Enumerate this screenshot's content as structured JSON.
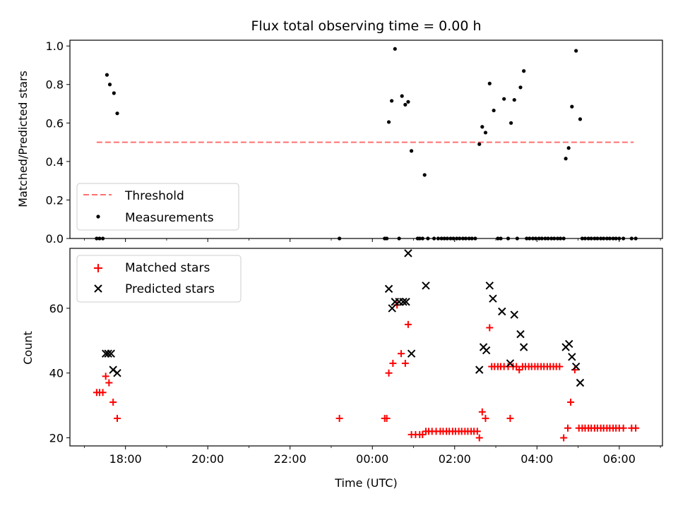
{
  "chart_data": [
    {
      "type": "scatter",
      "title": "Flux total observing time = 0.00 h",
      "xlabel": "",
      "ylabel": "Matched/Predicted stars",
      "xlim": [
        16.65,
        31.05
      ],
      "ylim": [
        0,
        1.03
      ],
      "yticks": [
        0.0,
        0.2,
        0.4,
        0.6,
        0.8,
        1.0
      ],
      "ytick_labels": [
        "0.0",
        "0.2",
        "0.4",
        "0.6",
        "0.8",
        "1.0"
      ],
      "legend": {
        "position": "bottom-left",
        "entries": [
          "Threshold",
          "Measurements"
        ]
      },
      "threshold": {
        "name": "Threshold",
        "value": 0.5,
        "x_range": [
          17.3,
          30.35
        ],
        "color": "#ff7070"
      },
      "series": [
        {
          "name": "Measurements",
          "color": "#000000",
          "points": [
            [
              17.3,
              0
            ],
            [
              17.37,
              0
            ],
            [
              17.45,
              0
            ],
            [
              17.55,
              0.85
            ],
            [
              17.62,
              0.8
            ],
            [
              17.72,
              0.755
            ],
            [
              17.8,
              0.65
            ],
            [
              23.2,
              0
            ],
            [
              24.3,
              0
            ],
            [
              24.35,
              0
            ],
            [
              24.4,
              0.605
            ],
            [
              24.47,
              0.715
            ],
            [
              24.55,
              0.985
            ],
            [
              24.65,
              0
            ],
            [
              24.72,
              0.74
            ],
            [
              24.8,
              0.695
            ],
            [
              24.87,
              0.71
            ],
            [
              24.95,
              0.455
            ],
            [
              25.1,
              0
            ],
            [
              25.15,
              0
            ],
            [
              25.22,
              0
            ],
            [
              25.27,
              0.33
            ],
            [
              25.35,
              0
            ],
            [
              25.5,
              0
            ],
            [
              25.6,
              0
            ],
            [
              25.68,
              0
            ],
            [
              25.75,
              0
            ],
            [
              25.82,
              0
            ],
            [
              25.9,
              0
            ],
            [
              25.97,
              0
            ],
            [
              26.05,
              0
            ],
            [
              26.12,
              0
            ],
            [
              26.2,
              0
            ],
            [
              26.27,
              0
            ],
            [
              26.35,
              0
            ],
            [
              26.42,
              0
            ],
            [
              26.5,
              0
            ],
            [
              26.6,
              0.49
            ],
            [
              26.67,
              0.58
            ],
            [
              26.75,
              0.55
            ],
            [
              26.85,
              0.805
            ],
            [
              26.95,
              0.665
            ],
            [
              27.05,
              0
            ],
            [
              27.12,
              0
            ],
            [
              27.2,
              0.725
            ],
            [
              27.3,
              0
            ],
            [
              27.37,
              0.6
            ],
            [
              27.45,
              0.72
            ],
            [
              27.52,
              0
            ],
            [
              27.6,
              0.785
            ],
            [
              27.68,
              0.87
            ],
            [
              27.75,
              0
            ],
            [
              27.82,
              0
            ],
            [
              27.9,
              0
            ],
            [
              27.97,
              0
            ],
            [
              28.05,
              0
            ],
            [
              28.12,
              0
            ],
            [
              28.2,
              0
            ],
            [
              28.27,
              0
            ],
            [
              28.35,
              0
            ],
            [
              28.42,
              0
            ],
            [
              28.5,
              0
            ],
            [
              28.57,
              0
            ],
            [
              28.65,
              0
            ],
            [
              28.7,
              0.415
            ],
            [
              28.77,
              0.47
            ],
            [
              28.85,
              0.685
            ],
            [
              28.95,
              0.975
            ],
            [
              29.05,
              0.62
            ],
            [
              29.1,
              0
            ],
            [
              29.17,
              0
            ],
            [
              29.25,
              0
            ],
            [
              29.32,
              0
            ],
            [
              29.4,
              0
            ],
            [
              29.47,
              0
            ],
            [
              29.55,
              0
            ],
            [
              29.62,
              0
            ],
            [
              29.7,
              0
            ],
            [
              29.77,
              0
            ],
            [
              29.85,
              0
            ],
            [
              29.92,
              0
            ],
            [
              30.0,
              0
            ],
            [
              30.1,
              0
            ],
            [
              30.3,
              0
            ],
            [
              30.4,
              0
            ]
          ]
        }
      ]
    },
    {
      "type": "scatter",
      "title": "",
      "xlabel": "Time (UTC)",
      "ylabel": "Count",
      "xlim": [
        16.65,
        31.05
      ],
      "ylim": [
        17.5,
        78.5
      ],
      "yticks": [
        20,
        40,
        60
      ],
      "ytick_labels": [
        "20",
        "40",
        "60"
      ],
      "xticks": [
        18,
        20,
        22,
        24,
        26,
        28,
        30
      ],
      "xtick_labels": [
        "18:00",
        "20:00",
        "22:00",
        "00:00",
        "02:00",
        "04:00",
        "06:00"
      ],
      "minor_xticks": [
        17,
        19,
        21,
        23,
        25,
        27,
        29,
        31
      ],
      "legend": {
        "position": "top-left",
        "entries": [
          "Matched stars",
          "Predicted stars"
        ]
      },
      "series": [
        {
          "name": "Matched stars",
          "marker": "plus",
          "color": "#ff0000",
          "points": [
            [
              17.3,
              34
            ],
            [
              17.37,
              34
            ],
            [
              17.45,
              34
            ],
            [
              17.52,
              39
            ],
            [
              17.6,
              37
            ],
            [
              17.7,
              31
            ],
            [
              17.8,
              26
            ],
            [
              23.2,
              26
            ],
            [
              24.3,
              26
            ],
            [
              24.35,
              26
            ],
            [
              24.4,
              40
            ],
            [
              24.5,
              43
            ],
            [
              24.6,
              61
            ],
            [
              24.7,
              46
            ],
            [
              24.8,
              43
            ],
            [
              24.87,
              55
            ],
            [
              24.95,
              21
            ],
            [
              25.05,
              21
            ],
            [
              25.15,
              21
            ],
            [
              25.22,
              21
            ],
            [
              25.3,
              22
            ],
            [
              25.37,
              22
            ],
            [
              25.45,
              22
            ],
            [
              25.55,
              22
            ],
            [
              25.65,
              22
            ],
            [
              25.72,
              22
            ],
            [
              25.8,
              22
            ],
            [
              25.87,
              22
            ],
            [
              25.95,
              22
            ],
            [
              26.02,
              22
            ],
            [
              26.1,
              22
            ],
            [
              26.17,
              22
            ],
            [
              26.25,
              22
            ],
            [
              26.32,
              22
            ],
            [
              26.4,
              22
            ],
            [
              26.47,
              22
            ],
            [
              26.55,
              22
            ],
            [
              26.6,
              20
            ],
            [
              26.67,
              28
            ],
            [
              26.75,
              26
            ],
            [
              26.85,
              54
            ],
            [
              26.9,
              42
            ],
            [
              26.97,
              42
            ],
            [
              27.05,
              42
            ],
            [
              27.12,
              42
            ],
            [
              27.2,
              42
            ],
            [
              27.3,
              42
            ],
            [
              27.35,
              26
            ],
            [
              27.42,
              42
            ],
            [
              27.5,
              42
            ],
            [
              27.57,
              41
            ],
            [
              27.65,
              42
            ],
            [
              27.72,
              42
            ],
            [
              27.8,
              42
            ],
            [
              27.87,
              42
            ],
            [
              27.95,
              42
            ],
            [
              28.02,
              42
            ],
            [
              28.1,
              42
            ],
            [
              28.17,
              42
            ],
            [
              28.25,
              42
            ],
            [
              28.32,
              42
            ],
            [
              28.4,
              42
            ],
            [
              28.47,
              42
            ],
            [
              28.55,
              42
            ],
            [
              28.65,
              20
            ],
            [
              28.75,
              23
            ],
            [
              28.82,
              31
            ],
            [
              28.92,
              41
            ],
            [
              29.02,
              23
            ],
            [
              29.1,
              23
            ],
            [
              29.17,
              23
            ],
            [
              29.25,
              23
            ],
            [
              29.32,
              23
            ],
            [
              29.4,
              23
            ],
            [
              29.47,
              23
            ],
            [
              29.55,
              23
            ],
            [
              29.62,
              23
            ],
            [
              29.7,
              23
            ],
            [
              29.77,
              23
            ],
            [
              29.85,
              23
            ],
            [
              29.92,
              23
            ],
            [
              30.0,
              23
            ],
            [
              30.1,
              23
            ],
            [
              30.3,
              23
            ],
            [
              30.4,
              23
            ]
          ]
        },
        {
          "name": "Predicted stars",
          "marker": "x",
          "color": "#000000",
          "points": [
            [
              17.52,
              46
            ],
            [
              17.58,
              46
            ],
            [
              17.65,
              46
            ],
            [
              17.7,
              41
            ],
            [
              17.8,
              40
            ],
            [
              24.4,
              66
            ],
            [
              24.48,
              60
            ],
            [
              24.55,
              62
            ],
            [
              24.65,
              62
            ],
            [
              24.75,
              62
            ],
            [
              24.82,
              62
            ],
            [
              24.87,
              77
            ],
            [
              24.95,
              46
            ],
            [
              25.3,
              67
            ],
            [
              26.6,
              41
            ],
            [
              26.7,
              48
            ],
            [
              26.77,
              47
            ],
            [
              26.85,
              67
            ],
            [
              26.93,
              63
            ],
            [
              27.15,
              59
            ],
            [
              27.35,
              43
            ],
            [
              27.45,
              58
            ],
            [
              27.6,
              52
            ],
            [
              27.68,
              48
            ],
            [
              28.7,
              48
            ],
            [
              28.78,
              49
            ],
            [
              28.85,
              45
            ],
            [
              28.95,
              42
            ],
            [
              29.05,
              37
            ]
          ]
        }
      ]
    }
  ]
}
